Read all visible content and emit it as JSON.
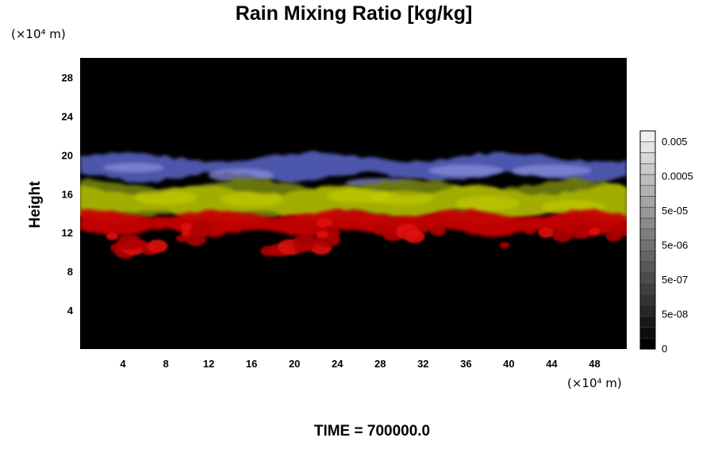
{
  "chart_data": {
    "type": "heatmap",
    "title": "Rain Mixing Ratio [kg/kg]",
    "ylabel": "Height",
    "xlabel": "",
    "x_scale_label": "(×10⁴ m)",
    "y_scale_label": "(×10⁴ m)",
    "xlim": [
      0,
      51
    ],
    "ylim": [
      0,
      30
    ],
    "x_ticks": [
      4,
      8,
      12,
      16,
      20,
      24,
      28,
      32,
      36,
      40,
      44,
      48
    ],
    "y_ticks": [
      4,
      8,
      12,
      16,
      20,
      24,
      28
    ],
    "colorbar": {
      "labels": [
        "0.005",
        "0.0005",
        "5e-05",
        "5e-06",
        "5e-07",
        "5e-08",
        "0"
      ],
      "levels": 20,
      "min_color": "#000000",
      "max_color": "#f0f0f0"
    },
    "background_color": "#000000",
    "bands": [
      {
        "name": "blue",
        "color": "#5a64c8",
        "y_range": [
          16.5,
          19.8
        ]
      },
      {
        "name": "yellow-green",
        "color": "#a8b400",
        "y_range": [
          13.5,
          17.0
        ]
      },
      {
        "name": "red",
        "color": "#c80000",
        "y_range": [
          10.5,
          14.0
        ]
      }
    ],
    "annotation": "TIME = 700000.0"
  }
}
